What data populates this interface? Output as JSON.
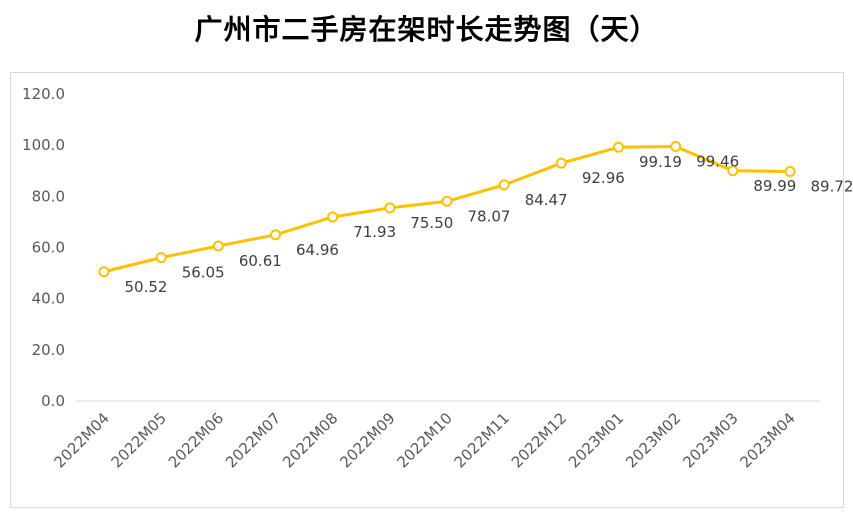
{
  "chart_data": {
    "type": "line",
    "title": "广州市二手房在架时长走势图（天）",
    "x": [
      "2022M04",
      "2022M05",
      "2022M06",
      "2022M07",
      "2022M08",
      "2022M09",
      "2022M10",
      "2022M11",
      "2022M12",
      "2023M01",
      "2023M02",
      "2023M03",
      "2023M04"
    ],
    "series": [
      {
        "values": [
          50.52,
          56.05,
          60.61,
          64.96,
          71.93,
          75.5,
          78.07,
          84.47,
          92.96,
          99.19,
          99.46,
          89.99,
          89.72
        ],
        "labels": [
          "50.52",
          "56.05",
          "60.61",
          "64.96",
          "71.93",
          "75.50",
          "78.07",
          "84.47",
          "92.96",
          "99.19",
          "99.46",
          "89.99",
          "89.72"
        ],
        "color": "#FFC000"
      }
    ],
    "yticks": [
      "0.0",
      "20.0",
      "40.0",
      "60.0",
      "80.0",
      "100.0",
      "120.0"
    ],
    "ylim": [
      0,
      120
    ],
    "grid": false,
    "legend": "none"
  }
}
